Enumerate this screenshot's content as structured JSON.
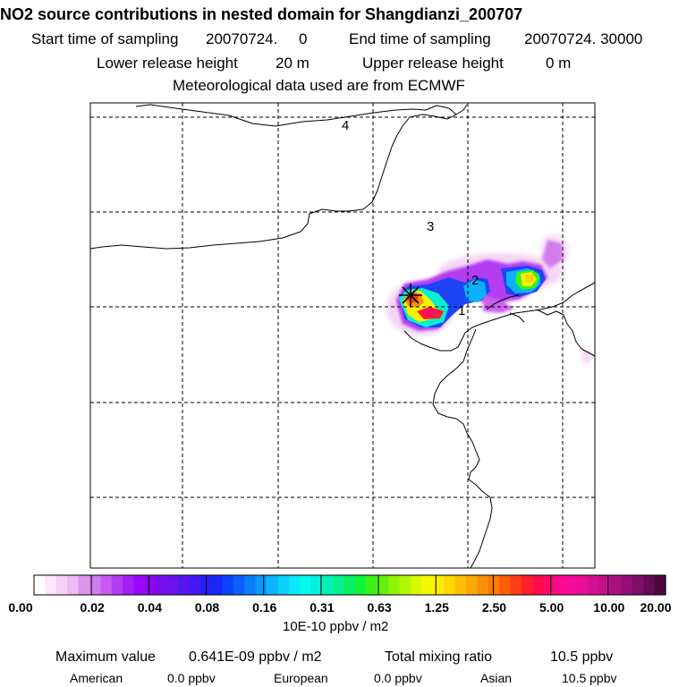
{
  "header": {
    "title": "NO2 source contributions in nested domain for Shangdianzi_200707",
    "start_label": "Start time of sampling",
    "start_value": "20070724.     0",
    "end_label": "End time of sampling",
    "end_value": "20070724. 30000",
    "lower_label": "Lower release height",
    "lower_value": "20 m",
    "upper_label": "Upper release height",
    "upper_value": "0 m",
    "met_line": "Meteorological data used are from ECMWF"
  },
  "map": {
    "region_labels": [
      "1",
      "2",
      "3",
      "4"
    ],
    "receptor_marker": "star-icon"
  },
  "colorbar": {
    "tick_labels": [
      "0.00",
      "0.02",
      "0.04",
      "0.08",
      "0.16",
      "0.31",
      "0.63",
      "1.25",
      "2.50",
      "5.00",
      "10.00",
      "20.00"
    ],
    "colors": [
      "#ffffff",
      "#fbe6fb",
      "#f6d0f6",
      "#eebaf2",
      "#dc96ee",
      "#d27cf2",
      "#c85af4",
      "#b43cf4",
      "#a61ef6",
      "#9a08f8",
      "#8a08f0",
      "#7a0cec",
      "#6812ee",
      "#5616f0",
      "#4418f4",
      "#2a1ef6",
      "#1628f8",
      "#0a44f6",
      "#0a60f8",
      "#0a7cfa",
      "#0a98fc",
      "#0ab6fe",
      "#0ad0fc",
      "#0ae8f8",
      "#06f8ee",
      "#04f0d8",
      "#04f0b4",
      "#06f08c",
      "#08f060",
      "#14f436",
      "#3ef016",
      "#68f00a",
      "#90f408",
      "#b4f606",
      "#d8f804",
      "#f2f804",
      "#fcec04",
      "#fed604",
      "#febe04",
      "#fea804",
      "#fe9004",
      "#fe7804",
      "#fe5c0a",
      "#fe3c14",
      "#fe1e2c",
      "#fe0a4e",
      "#fe0a70",
      "#fe0a8c",
      "#f80a9a",
      "#e80e96",
      "#d60e92",
      "#c0108a",
      "#a81080",
      "#941076",
      "#7e0e68",
      "#640c56",
      "#4a0a40"
    ],
    "units": "10E-10 ppbv / m2"
  },
  "stats": {
    "max_label": "Maximum value",
    "max_value": "0.641E-09 ppbv / m2",
    "total_label": "Total mixing ratio",
    "total_value": "10.5 ppbv",
    "american_label": "American",
    "american_value": "0.0 ppbv",
    "european_label": "European",
    "european_value": "0.0 ppbv",
    "asian_label": "Asian",
    "asian_value": "10.5 ppbv"
  }
}
